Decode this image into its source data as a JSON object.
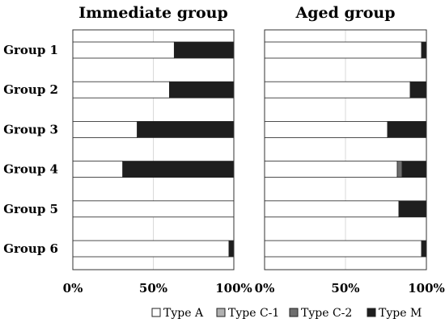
{
  "chart_data": [
    {
      "type": "bar",
      "orientation": "horizontal",
      "stacked": "percent",
      "title": "Immediate group",
      "categories": [
        "Group 1",
        "Group 2",
        "Group 3",
        "Group 4",
        "Group 5",
        "Group 6"
      ],
      "series": [
        {
          "name": "Type A",
          "color": "#ffffff",
          "values": [
            63,
            60,
            40,
            31,
            100,
            97
          ]
        },
        {
          "name": "Type C-1",
          "color": "#b0b0b0",
          "values": [
            0,
            0,
            0,
            0,
            0,
            0
          ]
        },
        {
          "name": "Type C-2",
          "color": "#6e6e6e",
          "values": [
            0,
            0,
            0,
            0,
            0,
            0
          ]
        },
        {
          "name": "Type M",
          "color": "#1e1e1e",
          "values": [
            37,
            40,
            60,
            69,
            0,
            3
          ]
        }
      ],
      "xlim": [
        0,
        100
      ],
      "xticks": [
        "0%",
        "50%",
        "100%"
      ],
      "grid": true
    },
    {
      "type": "bar",
      "orientation": "horizontal",
      "stacked": "percent",
      "title": "Aged group",
      "categories": [
        "Group 1",
        "Group 2",
        "Group 3",
        "Group 4",
        "Group 5",
        "Group 6"
      ],
      "series": [
        {
          "name": "Type A",
          "color": "#ffffff",
          "values": [
            97,
            90,
            76,
            82,
            83,
            97
          ]
        },
        {
          "name": "Type C-1",
          "color": "#b0b0b0",
          "values": [
            0,
            0,
            0,
            0,
            0,
            0
          ]
        },
        {
          "name": "Type C-2",
          "color": "#6e6e6e",
          "values": [
            0,
            0,
            0,
            3,
            0,
            0
          ]
        },
        {
          "name": "Type M",
          "color": "#1e1e1e",
          "values": [
            3,
            10,
            24,
            15,
            17,
            3
          ]
        }
      ],
      "xlim": [
        0,
        100
      ],
      "xticks": [
        "0%",
        "50%",
        "100%"
      ],
      "grid": true
    }
  ],
  "legend": {
    "position": "bottom-right",
    "items": [
      {
        "label": "Type A",
        "color": "#ffffff"
      },
      {
        "label": "Type C-1",
        "color": "#b0b0b0"
      },
      {
        "label": "Type C-2",
        "color": "#6e6e6e"
      },
      {
        "label": "Type M",
        "color": "#1e1e1e"
      }
    ]
  }
}
